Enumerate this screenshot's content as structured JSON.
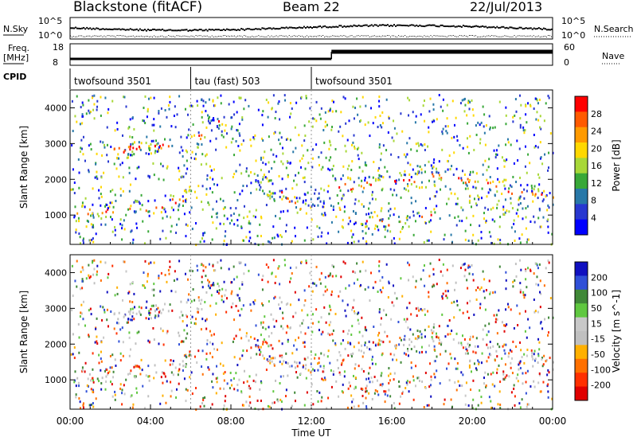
{
  "header": {
    "station": "Blackstone (fitACF)",
    "beam": "Beam 22",
    "date": "22/Jul/2013"
  },
  "noise_panel": {
    "left_label": "N.Sky",
    "right_label": "N.Search",
    "left_ticks": [
      "10^5",
      "10^0"
    ],
    "right_ticks": [
      "10^5",
      "10^0"
    ]
  },
  "freq_panel": {
    "left_label_1": "Freq.",
    "left_label_2": "[MHz]",
    "right_label": "Nave",
    "left_ticks": [
      "18",
      "8"
    ],
    "right_ticks": [
      "60",
      "0"
    ],
    "cpid_label": "CPID"
  },
  "cpid_segments": [
    {
      "label": "twofsound 3501",
      "start_hour": 0,
      "end_hour": 6
    },
    {
      "label": "tau (fast) 503",
      "start_hour": 6,
      "end_hour": 12
    },
    {
      "label": "twofsound 3501",
      "start_hour": 12,
      "end_hour": 24
    }
  ],
  "power_colorbar": {
    "label": "Power [dB]",
    "ticks": [
      "28",
      "24",
      "20",
      "16",
      "12",
      "8",
      "4"
    ],
    "colors": [
      "#ff0000",
      "#ff5a00",
      "#ff9a00",
      "#ffd800",
      "#a8d838",
      "#38a838",
      "#2878a8",
      "#2838d0",
      "#0000ff"
    ]
  },
  "velocity_colorbar": {
    "label": "Velocity [m s^-1]",
    "ticks": [
      "200",
      "100",
      "50",
      "15",
      "-15",
      "-50",
      "-100",
      "-200"
    ],
    "colors": [
      "#1010c0",
      "#3050d8",
      "#408838",
      "#60c840",
      "#c8c8c8",
      "#c0c0c0",
      "#ffb000",
      "#ff7000",
      "#ff3000",
      "#e00000"
    ]
  },
  "chart_data": [
    {
      "type": "heatmap",
      "title": "",
      "xlabel": "",
      "ylabel": "Slant Range [km]",
      "x_range_hours": [
        0,
        24
      ],
      "ylim": [
        180,
        4500
      ],
      "yticks": [
        1000,
        2000,
        3000,
        4000
      ],
      "xtick_labels": [
        "00:00",
        "04:00",
        "08:00",
        "12:00",
        "16:00",
        "20:00",
        "00:00"
      ],
      "echo_bands": [
        {
          "name": "",
          "points": [
            [
              0,
              1100
            ],
            [
              2,
              1130
            ],
            [
              4,
              1250
            ],
            [
              5.5,
              1450
            ],
            [
              6,
              1700
            ]
          ]
        },
        {
          "name": "",
          "points": [
            [
              1.5,
              2850
            ],
            [
              4,
              2900
            ],
            [
              5.5,
              2950
            ],
            [
              6.2,
              3100
            ],
            [
              7,
              3500
            ],
            [
              7.5,
              3650
            ]
          ]
        },
        {
          "name": "",
          "points": [
            [
              9.5,
              1900
            ],
            [
              10.5,
              1600
            ],
            [
              11.2,
              1350
            ],
            [
              12,
              1100
            ]
          ]
        },
        {
          "name": "",
          "points": [
            [
              13,
              1200
            ],
            [
              14,
              950
            ],
            [
              16,
              800
            ],
            [
              17,
              820
            ],
            [
              18,
              1000
            ]
          ]
        },
        {
          "name": "",
          "points": [
            [
              13,
              1800
            ],
            [
              16,
              1900
            ],
            [
              18,
              2100
            ],
            [
              20,
              2000
            ],
            [
              22,
              1700
            ],
            [
              24,
              1500
            ]
          ]
        }
      ]
    },
    {
      "type": "heatmap",
      "title": "",
      "xlabel": "Time UT",
      "ylabel": "Slant Range [km]",
      "x_range_hours": [
        0,
        24
      ],
      "ylim": [
        180,
        4500
      ],
      "yticks": [
        1000,
        2000,
        3000,
        4000
      ],
      "xtick_labels": [
        "00:00",
        "04:00",
        "08:00",
        "12:00",
        "16:00",
        "20:00",
        "00:00"
      ]
    }
  ]
}
